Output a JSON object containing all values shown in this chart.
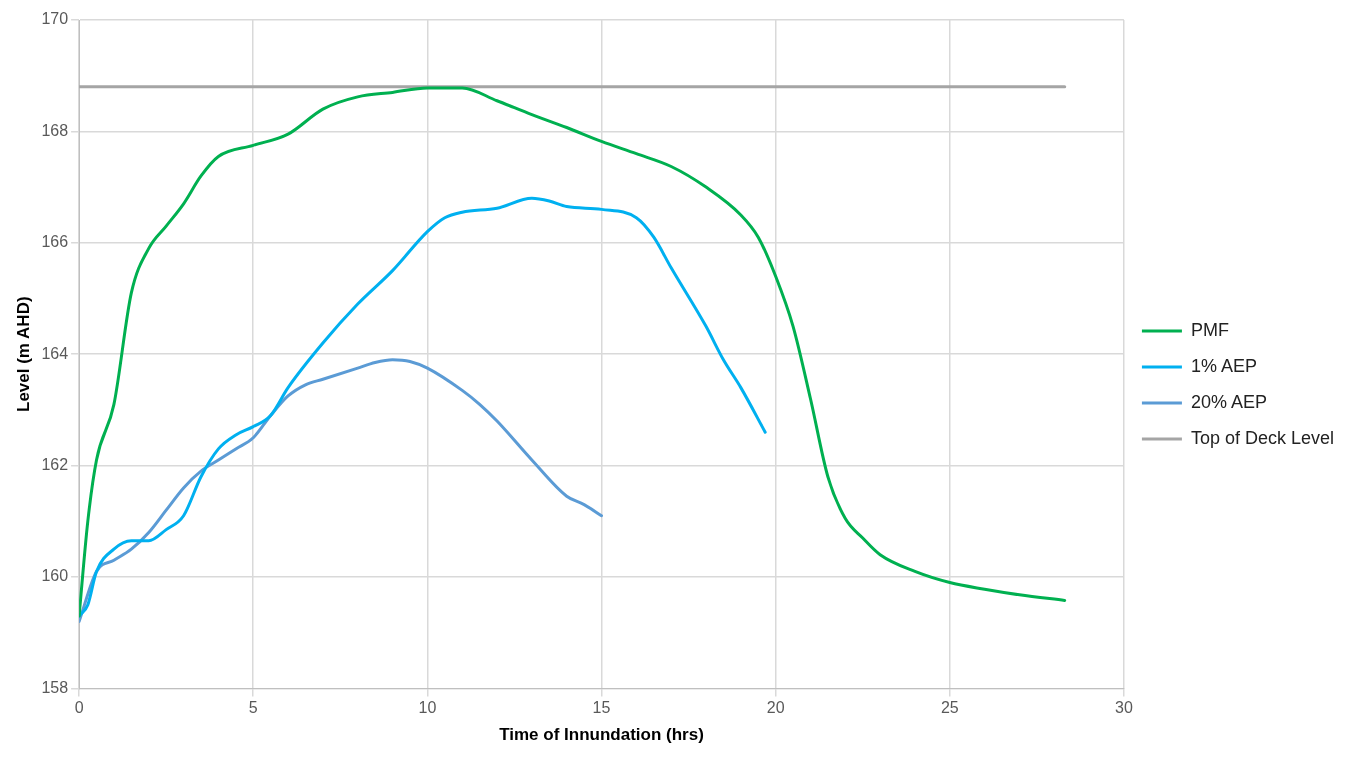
{
  "chart_data": {
    "type": "line",
    "xlabel": "Time of Innundation (hrs)",
    "ylabel": "Level (m AHD)",
    "xlim": [
      0,
      30
    ],
    "xticks": [
      0,
      5,
      10,
      15,
      20,
      25,
      30
    ],
    "ylim": [
      158,
      170
    ],
    "yticks": [
      158,
      160,
      162,
      164,
      166,
      168,
      170
    ],
    "grid": true,
    "legend": "right",
    "marker": "none",
    "line_style": "solid",
    "series": [
      {
        "name": "PMF",
        "color": "#00b050",
        "x": [
          0,
          0.25,
          0.5,
          1,
          1.5,
          2,
          2.5,
          3,
          3.5,
          4,
          5,
          6,
          7,
          8,
          9,
          10,
          11,
          12,
          13,
          14,
          15,
          16,
          17,
          18,
          19,
          19.5,
          20,
          20.5,
          21,
          21.5,
          22,
          22.5,
          23,
          24,
          25,
          26,
          27,
          28.3
        ],
        "values": [
          159.3,
          161,
          162.1,
          163.1,
          165.1,
          165.9,
          166.3,
          166.7,
          167.2,
          167.55,
          167.75,
          167.95,
          168.4,
          168.62,
          168.7,
          168.78,
          168.78,
          168.55,
          168.3,
          168.07,
          167.82,
          167.6,
          167.37,
          167.0,
          166.5,
          166.1,
          165.4,
          164.5,
          163.2,
          161.8,
          161.05,
          160.7,
          160.4,
          160.1,
          159.9,
          159.78,
          159.68,
          159.58
        ]
      },
      {
        "name": "1% AEP",
        "color": "#00b0f0",
        "x": [
          0,
          0.25,
          0.5,
          1,
          1.5,
          2,
          2.5,
          3,
          3.5,
          4,
          4.5,
          5,
          5.5,
          6,
          7,
          8,
          9,
          10,
          10.5,
          11,
          12,
          13,
          13.5,
          14,
          15,
          16,
          16.5,
          17,
          18,
          18.5,
          19,
          19.7
        ],
        "values": [
          159.3,
          159.5,
          160.1,
          160.5,
          160.65,
          160.65,
          160.85,
          161.1,
          161.8,
          162.3,
          162.55,
          162.7,
          162.9,
          163.4,
          164.2,
          164.9,
          165.5,
          166.2,
          166.45,
          166.55,
          166.62,
          166.8,
          166.75,
          166.65,
          166.6,
          166.45,
          166.1,
          165.55,
          164.5,
          163.9,
          163.4,
          162.6
        ]
      },
      {
        "name": "20% AEP",
        "color": "#5b9bd5",
        "x": [
          0,
          0.5,
          1,
          1.5,
          2,
          2.5,
          3,
          3.5,
          4,
          4.5,
          5,
          5.5,
          6,
          6.5,
          7,
          8,
          8.5,
          9,
          9.5,
          10,
          11,
          11.5,
          12,
          13,
          14,
          14.5,
          15
        ],
        "values": [
          159.2,
          160.1,
          160.3,
          160.5,
          160.8,
          161.2,
          161.6,
          161.9,
          162.1,
          162.3,
          162.5,
          162.9,
          163.25,
          163.45,
          163.55,
          163.75,
          163.85,
          163.9,
          163.87,
          163.75,
          163.35,
          163.1,
          162.8,
          162.1,
          161.45,
          161.3,
          161.1
        ]
      },
      {
        "name": "Top of Deck Level",
        "color": "#a5a5a5",
        "x": [
          0,
          28.3
        ],
        "values": [
          168.8,
          168.8
        ]
      }
    ]
  }
}
